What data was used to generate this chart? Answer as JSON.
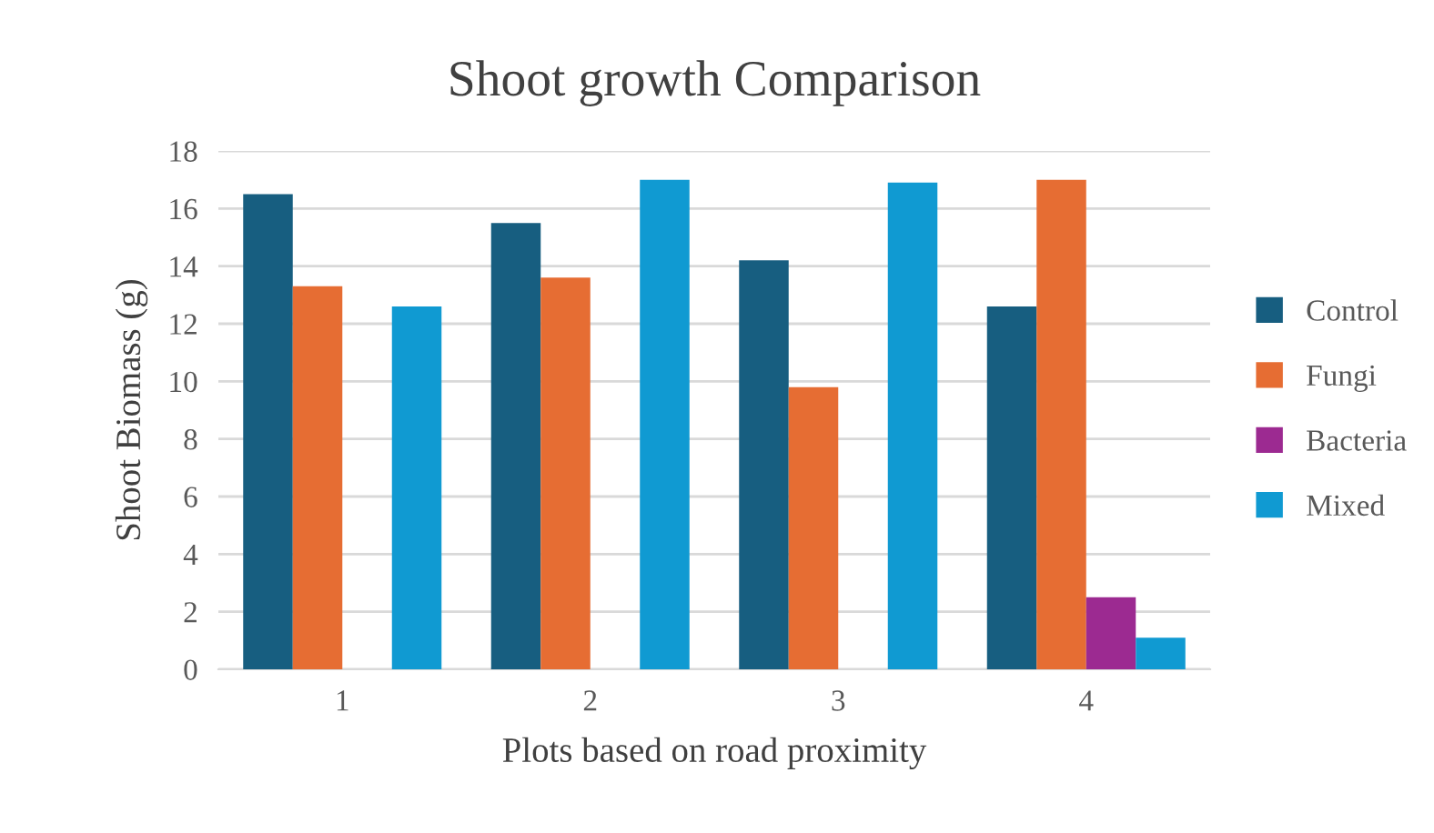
{
  "chart_data": {
    "type": "bar",
    "title": "Shoot growth Comparison",
    "xlabel": "Plots based on road proximity",
    "ylabel": "Shoot Biomass (g)",
    "categories": [
      "1",
      "2",
      "3",
      "4"
    ],
    "series": [
      {
        "name": "Control",
        "color": "#175e80",
        "values": [
          16.5,
          15.5,
          14.2,
          12.6
        ]
      },
      {
        "name": "Fungi",
        "color": "#e66d33",
        "values": [
          13.3,
          13.6,
          9.8,
          17.0
        ]
      },
      {
        "name": "Bacteria",
        "color": "#9c2a91",
        "values": [
          null,
          null,
          null,
          2.5
        ]
      },
      {
        "name": "Mixed",
        "color": "#109ad2",
        "values": [
          12.6,
          17.0,
          16.9,
          1.1
        ]
      }
    ],
    "ylim": [
      0,
      18
    ],
    "yticks": [
      0,
      2,
      4,
      6,
      8,
      10,
      12,
      14,
      16,
      18
    ],
    "grid": "y",
    "legend": "right"
  }
}
